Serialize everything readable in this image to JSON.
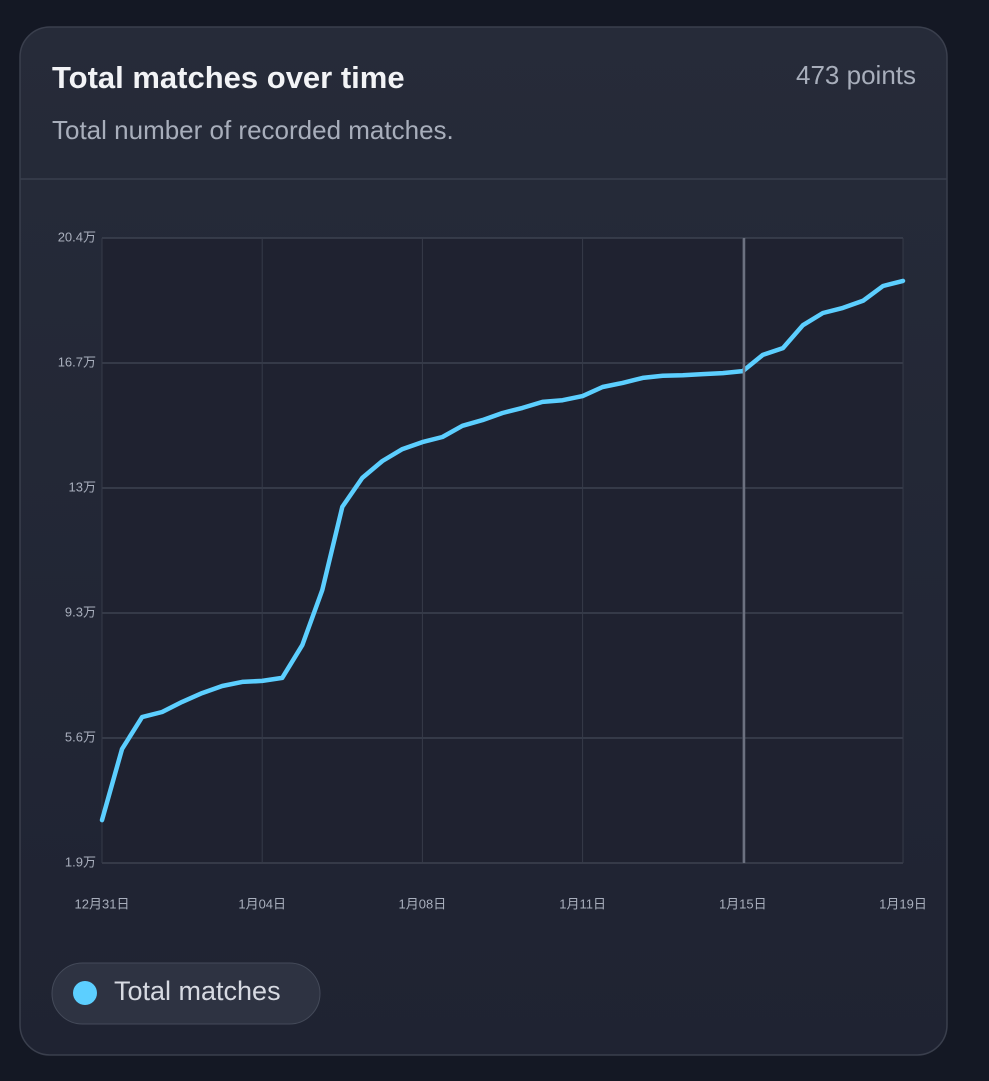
{
  "chart_data": {
    "type": "line",
    "title": "Total matches over time",
    "subtitle": "Total number of recorded matches.",
    "annotation": "473 points",
    "xticks": [
      "12月31日",
      "1月04日",
      "1月08日",
      "1月11日",
      "1月15日",
      "1月19日"
    ],
    "ylim": [
      19000,
      204000
    ],
    "yticks": [
      {
        "value": 19000,
        "label": "1.9万"
      },
      {
        "value": 56000,
        "label": "5.6万"
      },
      {
        "value": 93000,
        "label": "9.3万"
      },
      {
        "value": 130000,
        "label": "13万"
      },
      {
        "value": 167000,
        "label": "16.7万"
      },
      {
        "value": 204000,
        "label": "20.4万"
      }
    ],
    "grid": true,
    "series": [
      {
        "name": "Total matches",
        "color": "#5ccfff",
        "values": [
          31700,
          52700,
          62200,
          63700,
          66700,
          69300,
          71400,
          72600,
          72900,
          73800,
          83500,
          99800,
          124400,
          133000,
          138000,
          141500,
          143600,
          145100,
          148400,
          150100,
          152200,
          153700,
          155500,
          156000,
          157200,
          159900,
          161100,
          162600,
          163200,
          163400,
          163700,
          164000,
          164600,
          169400,
          171400,
          178200,
          181800,
          183300,
          185400,
          189800,
          191300
        ]
      }
    ]
  }
}
